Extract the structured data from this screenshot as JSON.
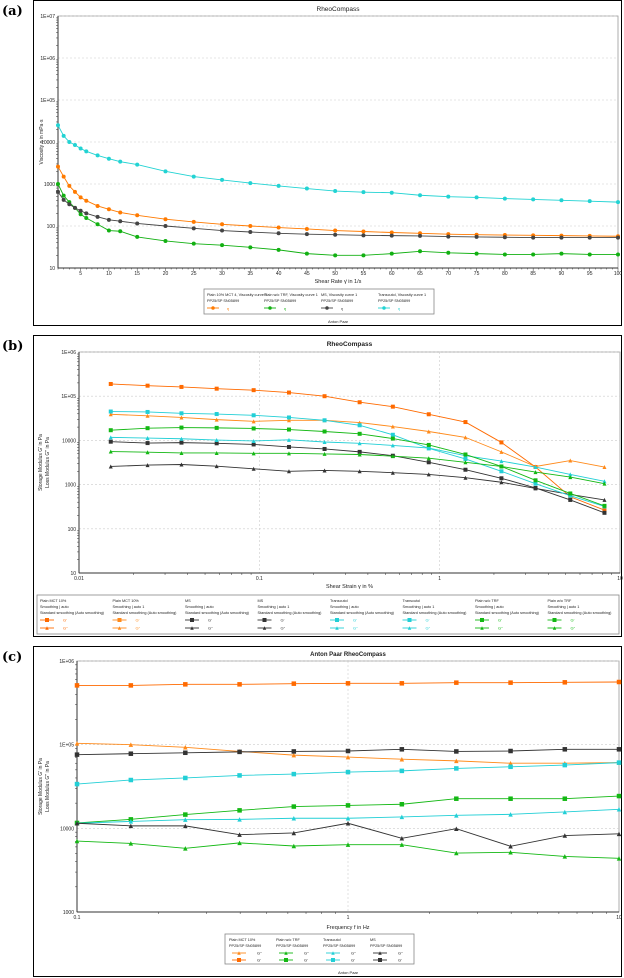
{
  "panels": [
    {
      "label": "(a)",
      "footer": "Anton Paar"
    },
    {
      "label": "(b)",
      "footer": ""
    },
    {
      "label": "(c)",
      "footer": "Anton Paar"
    }
  ],
  "chart_data": [
    {
      "type": "line",
      "title": "RheoCompass",
      "xlabel": "Shear Rate γ̇ in 1/s",
      "ylabel": "Viscosity η in mPa·s",
      "xscale": "linear",
      "yscale": "log",
      "xlim": [
        1,
        100
      ],
      "ylim": [
        10,
        10000000
      ],
      "xticks": [
        5,
        10,
        15,
        20,
        25,
        30,
        35,
        40,
        45,
        50,
        55,
        60,
        65,
        70,
        75,
        80,
        85,
        90,
        95,
        100
      ],
      "xtick_labels": [
        "5",
        "10",
        "15",
        "20",
        "25",
        "30",
        "35",
        "40",
        "45",
        "50",
        "55",
        "60",
        "65",
        "70",
        "75",
        "80",
        "85",
        "90",
        "95",
        "100"
      ],
      "yticks": [
        10,
        100,
        1000,
        10000,
        100000,
        1000000,
        10000000
      ],
      "ytick_labels": [
        "10",
        "100",
        "1000",
        "10000",
        "1E+05",
        "1E+06",
        "1E+07"
      ],
      "grid": "horizontal",
      "legend_placement": "bottom",
      "x": [
        1,
        2,
        3,
        4,
        5,
        6,
        8,
        10,
        12,
        15,
        20,
        25,
        30,
        35,
        40,
        45,
        50,
        55,
        60,
        65,
        70,
        75,
        80,
        85,
        90,
        95,
        100
      ],
      "series": [
        {
          "name": "Plain 10% MCT 4, Viscosity curve 1",
          "sub": "PP25/SP SN05899",
          "symbol": "η",
          "color": "#ff7a00",
          "marker": "circle",
          "values": [
            2600,
            1500,
            900,
            650,
            480,
            400,
            300,
            250,
            210,
            180,
            145,
            125,
            110,
            100,
            92,
            85,
            78,
            74,
            70,
            67,
            64,
            62,
            61,
            60,
            59,
            58,
            57
          ]
        },
        {
          "name": "Plain w/o TRF, Viscosity curve 1",
          "sub": "PP25/SP SN05899",
          "symbol": "η",
          "color": "#12b012",
          "marker": "circle",
          "values": [
            1000,
            530,
            370,
            270,
            190,
            155,
            110,
            78,
            75,
            55,
            44,
            38,
            35,
            31,
            27,
            22,
            20,
            20,
            22,
            25,
            23,
            22,
            21,
            21,
            22,
            21,
            21
          ]
        },
        {
          "name": "MS, Viscosity curve 1",
          "sub": "PP25/SP SN05899",
          "symbol": "η",
          "color": "#444444",
          "marker": "circle",
          "values": [
            650,
            420,
            330,
            270,
            230,
            200,
            165,
            140,
            130,
            115,
            100,
            88,
            78,
            72,
            67,
            64,
            62,
            60,
            59,
            58,
            56,
            55,
            54,
            53,
            53,
            53,
            53
          ]
        },
        {
          "name": "Transcutol, Viscosity curve 1",
          "sub": "PP25/SP SN05899",
          "symbol": "η",
          "color": "#22d3d3",
          "marker": "circle",
          "values": [
            25000,
            14000,
            10000,
            8500,
            7000,
            6000,
            4800,
            4000,
            3400,
            2900,
            2000,
            1500,
            1250,
            1050,
            900,
            780,
            680,
            640,
            620,
            540,
            500,
            480,
            450,
            430,
            410,
            390,
            370
          ]
        }
      ]
    },
    {
      "type": "line",
      "title": "RheoCompass",
      "xlabel": "Shear Strain γ in %",
      "ylabel": "Storage Modulus G' in Pa",
      "ylabel2": "Loss Modulus G'' in Pa",
      "xscale": "log",
      "yscale": "log",
      "xlim": [
        0.01,
        10
      ],
      "ylim": [
        10,
        1000000
      ],
      "xticks": [
        0.01,
        0.1,
        1,
        10
      ],
      "xtick_labels": [
        "0.01",
        "0.1",
        "1",
        "10"
      ],
      "yticks": [
        10,
        100,
        1000,
        10000,
        100000,
        1000000
      ],
      "ytick_labels": [
        "10",
        "100",
        "1000",
        "10000",
        "1E+05",
        "1E+06"
      ],
      "grid": "both",
      "legend_placement": "bottom",
      "x": [
        0.015,
        0.024,
        0.037,
        0.058,
        0.093,
        0.146,
        0.23,
        0.36,
        0.55,
        0.87,
        1.39,
        2.2,
        3.4,
        5.3,
        8.2
      ],
      "series": [
        {
          "name": "Plain MCT 10%",
          "line2": "Smoothing | auto",
          "line3": "Standard smoothing (Auto smoothing)",
          "symbol": "G'",
          "color": "#ff6a00",
          "marker": "square",
          "values": [
            189000,
            173000,
            162000,
            148000,
            137000,
            121000,
            100000,
            73000,
            58000,
            39000,
            26000,
            9000,
            2500,
            530,
            265
          ]
        },
        {
          "name": "Plain MCT 10%",
          "line2": "Smoothing | auto 1",
          "line3": "Standard smoothing (Auto smoothing)",
          "symbol": "G''",
          "color": "#ff8a1a",
          "marker": "triangle",
          "values": [
            39000,
            36000,
            33000,
            29500,
            27000,
            28500,
            28500,
            25300,
            20600,
            15900,
            11700,
            5500,
            2570,
            3500,
            2500
          ]
        },
        {
          "name": "MS",
          "line2": "Smoothing | auto",
          "line3": "Standard smoothing (Auto smoothing)",
          "symbol": "G'",
          "color": "#333333",
          "marker": "square",
          "values": [
            9350,
            8700,
            8900,
            8600,
            8100,
            7100,
            6400,
            5500,
            4500,
            3200,
            2170,
            1390,
            840,
            450,
            230
          ]
        },
        {
          "name": "MS",
          "line2": "Smoothing | auto 1",
          "line3": "Standard smoothing (Auto smoothing)",
          "symbol": "G''",
          "color": "#333333",
          "marker": "triangle",
          "values": [
            2570,
            2760,
            2850,
            2610,
            2280,
            2000,
            2090,
            2000,
            1860,
            1700,
            1430,
            1130,
            820,
            600,
            450
          ]
        },
        {
          "name": "Transcutol",
          "line2": "Smoothing | auto",
          "line3": "Standard smoothing (Auto smoothing)",
          "symbol": "G'",
          "color": "#22cfd6",
          "marker": "square",
          "values": [
            45000,
            44000,
            41000,
            39500,
            37000,
            33000,
            28500,
            22000,
            13400,
            6600,
            3800,
            2000,
            1050,
            560,
            320
          ]
        },
        {
          "name": "Transcutol",
          "line2": "Smoothing | auto 1",
          "line3": "Standard smoothing (Auto smoothing)",
          "symbol": "G''",
          "color": "#22cfd6",
          "marker": "triangle",
          "values": [
            11700,
            11300,
            10900,
            10200,
            9700,
            10300,
            9200,
            8600,
            7700,
            6700,
            4500,
            3400,
            2500,
            1700,
            1190
          ]
        },
        {
          "name": "Plain w/o TRF",
          "line2": "Smoothing | auto",
          "line3": "Standard smoothing (Auto smoothing)",
          "symbol": "G'",
          "color": "#14b814",
          "marker": "square",
          "values": [
            17000,
            18900,
            19500,
            19200,
            18600,
            17600,
            15900,
            14100,
            11000,
            7900,
            4800,
            2570,
            1250,
            630,
            330
          ]
        },
        {
          "name": "Plain w/o TRF",
          "line2": "Smoothing | auto 1",
          "line3": "Standard smoothing (Auto smoothing)",
          "symbol": "G''",
          "color": "#14b814",
          "marker": "triangle",
          "values": [
            5600,
            5400,
            5200,
            5200,
            5100,
            5100,
            4950,
            4800,
            4400,
            3950,
            3200,
            2570,
            1920,
            1480,
            1050
          ]
        }
      ]
    },
    {
      "type": "line",
      "title": "Anton Paar RheoCompass",
      "xlabel": "Frequency f in Hz",
      "ylabel": "Storage Modulus G' in Pa",
      "ylabel2": "Loss Modulus G'' in Pa",
      "xscale": "log",
      "yscale": "log",
      "xlim": [
        0.1,
        10
      ],
      "ylim": [
        1000,
        1000000
      ],
      "xticks": [
        0.1,
        1,
        10
      ],
      "xtick_labels": [
        "0.1",
        "1",
        "10"
      ],
      "yticks": [
        1000,
        10000,
        100000,
        1000000
      ],
      "ytick_labels": [
        "1000",
        "10000",
        "1E+05",
        "1E+06"
      ],
      "grid": "both",
      "legend_placement": "bottom",
      "x": [
        0.1,
        0.158,
        0.251,
        0.398,
        0.631,
        1,
        1.58,
        2.51,
        3.98,
        6.31,
        10
      ],
      "series": [
        {
          "name": "Plain MCT 10%",
          "sub": "PP25/SP SN05899",
          "symbol": "G''",
          "color": "#ff8a1a",
          "marker": "triangle",
          "values": [
            103700,
            100000,
            93000,
            83000,
            75000,
            71000,
            67000,
            64000,
            60000,
            60000,
            61000
          ]
        },
        {
          "name": "Plain MCT 10%",
          "sub": "",
          "symbol": "G'",
          "color": "#ff6a00",
          "marker": "square",
          "values": [
            511000,
            511000,
            526000,
            526000,
            536000,
            541000,
            541000,
            551000,
            551000,
            556000,
            561000
          ]
        },
        {
          "name": "Plain w/o TRF",
          "sub": "PP25/SP SN05899",
          "symbol": "G''",
          "color": "#14b814",
          "marker": "triangle",
          "values": [
            7050,
            6600,
            5770,
            6700,
            6150,
            6380,
            6380,
            5070,
            5170,
            4620,
            4380
          ]
        },
        {
          "name": "Plain w/o TRF",
          "sub": "",
          "symbol": "G'",
          "color": "#14b814",
          "marker": "square",
          "values": [
            11600,
            12800,
            14600,
            16400,
            18200,
            18800,
            19400,
            22600,
            22600,
            22600,
            24300
          ]
        },
        {
          "name": "Transcutol",
          "sub": "PP25/SP SN05899",
          "symbol": "G''",
          "color": "#22cfd6",
          "marker": "triangle",
          "values": [
            11500,
            12100,
            12700,
            12800,
            13200,
            13200,
            13700,
            14300,
            14700,
            15700,
            16900
          ]
        },
        {
          "name": "Transcutol",
          "sub": "",
          "symbol": "G'",
          "color": "#22cfd6",
          "marker": "square",
          "values": [
            33800,
            37800,
            40000,
            42900,
            44500,
            47000,
            48600,
            52000,
            54400,
            57000,
            61000
          ]
        },
        {
          "name": "MS",
          "sub": "PP25/SP SN05899",
          "symbol": "G''",
          "color": "#333333",
          "marker": "triangle",
          "values": [
            11500,
            10700,
            10700,
            8400,
            8800,
            11500,
            7600,
            9900,
            6100,
            8200,
            8600
          ]
        },
        {
          "name": "MS",
          "sub": "",
          "symbol": "G'",
          "color": "#333333",
          "marker": "square",
          "values": [
            76000,
            78000,
            80000,
            82000,
            83000,
            84000,
            88000,
            83000,
            84000,
            88000,
            88000
          ]
        }
      ]
    }
  ]
}
